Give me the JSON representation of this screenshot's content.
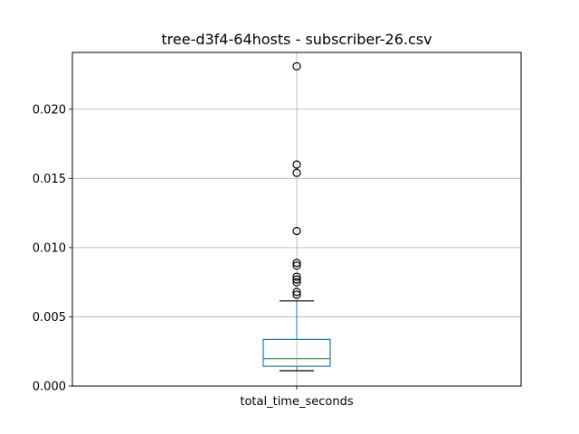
{
  "chart_data": {
    "type": "box",
    "title": "tree-d3f4-64hosts - subscriber-26.csv",
    "xlabel": "",
    "ylabel": "",
    "ylim": [
      0.0,
      0.0241
    ],
    "yticks": [
      0.0,
      0.005,
      0.01,
      0.015,
      0.02
    ],
    "ytick_labels": [
      "0.000",
      "0.005",
      "0.010",
      "0.015",
      "0.020"
    ],
    "grid": true,
    "categories": [
      "total_time_seconds"
    ],
    "boxes": [
      {
        "name": "total_time_seconds",
        "whisker_low": 0.00111,
        "q1": 0.00143,
        "median": 0.00198,
        "q3": 0.00337,
        "whisker_high": 0.00615,
        "fliers": [
          0.0231,
          0.016,
          0.0154,
          0.0112,
          0.0089,
          0.0087,
          0.0079,
          0.0077,
          0.0075,
          0.0068,
          0.0066
        ]
      }
    ],
    "colors": {
      "box": "#1f77b4",
      "median": "#2ca02c",
      "whisker": "#000000",
      "grid": "#b0b0b0"
    }
  }
}
